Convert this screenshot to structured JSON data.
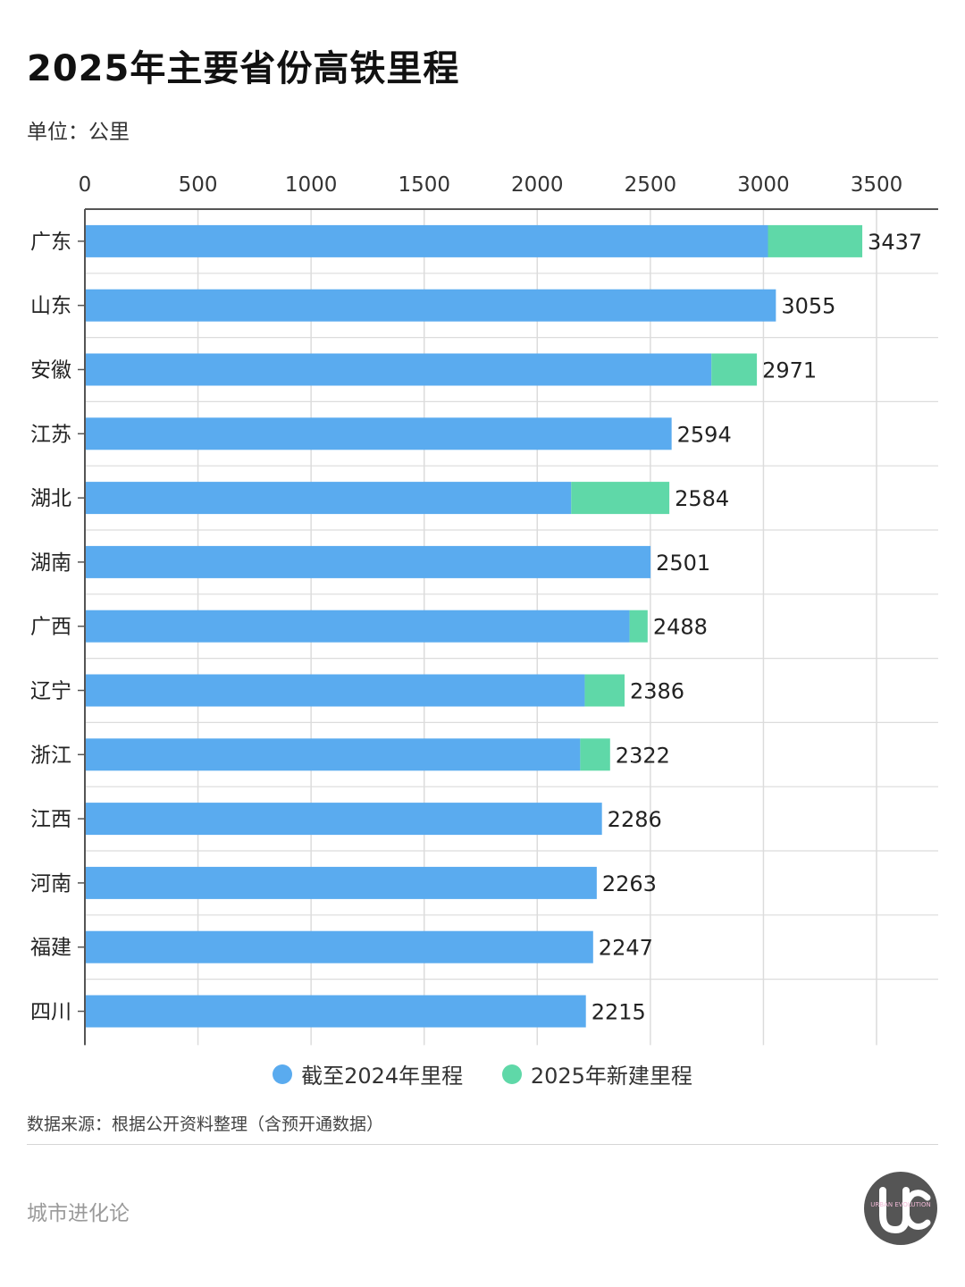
{
  "title": "2025年主要省份高铁里程",
  "unit": "单位：公里",
  "source": "数据来源：根据公开资料整理（含预开通数据）",
  "brand": "城市进化论",
  "logo_text": "URBAN EVOLUTION",
  "colors": {
    "base": "#5aabef",
    "new": "#5fd8a8",
    "grid": "#dcdcdc",
    "axis": "#555555"
  },
  "chart_data": {
    "type": "bar",
    "orientation": "horizontal",
    "stacked": true,
    "title": "2025年主要省份高铁里程",
    "categories": [
      "广东",
      "山东",
      "安徽",
      "江苏",
      "湖北",
      "湖南",
      "广西",
      "辽宁",
      "浙江",
      "江西",
      "河南",
      "福建",
      "四川"
    ],
    "series": [
      {
        "name": "截至2024年里程",
        "values": [
          3020,
          3055,
          2770,
          2594,
          2150,
          2501,
          2408,
          2210,
          2190,
          2286,
          2263,
          2247,
          2215
        ]
      },
      {
        "name": "2025年新建里程",
        "values": [
          417,
          0,
          201,
          0,
          434,
          0,
          80,
          176,
          132,
          0,
          0,
          0,
          0
        ]
      }
    ],
    "totals": [
      "3437",
      "3055",
      "2971",
      "2594",
      "2584",
      "2501",
      "2488",
      "2386",
      "2322",
      "2286",
      "2263",
      "2247",
      "2215"
    ],
    "xlim": [
      0,
      3800
    ],
    "xticks": [
      0,
      500,
      1000,
      1500,
      2000,
      2500,
      3000,
      3500
    ],
    "axis_position": "top",
    "grid": true,
    "legend": "bottom"
  }
}
